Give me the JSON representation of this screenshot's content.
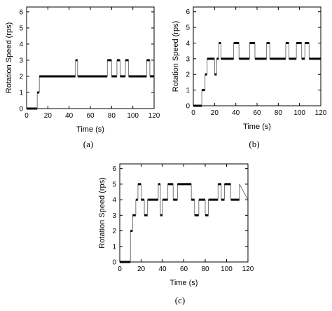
{
  "chart_data": [
    {
      "type": "line",
      "caption": "(a)",
      "xlabel": "Time (s)",
      "ylabel": "Rotation Speed (rps)",
      "xlim": [
        0,
        120
      ],
      "ylim": [
        0,
        6.3
      ],
      "xticks": [
        0,
        20,
        40,
        60,
        80,
        100,
        120
      ],
      "yticks": [
        0,
        1,
        2,
        3,
        4,
        5,
        6
      ],
      "grid": false,
      "series": [
        {
          "x": [
            0,
            10,
            10,
            12,
            12,
            46,
            46,
            48,
            48,
            76,
            76,
            80,
            80,
            85,
            85,
            88,
            88,
            93,
            93,
            96,
            96,
            113,
            113,
            116,
            116,
            120
          ],
          "y": [
            0,
            0,
            1,
            1,
            2,
            2,
            3,
            3,
            2,
            2,
            3,
            3,
            2,
            2,
            3,
            3,
            2,
            2,
            3,
            3,
            2,
            2,
            3,
            3,
            2,
            2
          ]
        }
      ]
    },
    {
      "type": "line",
      "caption": "(b)",
      "xlabel": "Time (s)",
      "ylabel": "Rotation Speed (rps)",
      "xlim": [
        0,
        120
      ],
      "ylim": [
        0,
        6.3
      ],
      "xticks": [
        0,
        20,
        40,
        60,
        80,
        100,
        120
      ],
      "yticks": [
        0,
        1,
        2,
        3,
        4,
        5,
        6
      ],
      "grid": false,
      "series": [
        {
          "x": [
            0,
            8,
            8,
            11,
            11,
            13,
            13,
            20,
            20,
            22,
            22,
            24,
            24,
            26,
            26,
            38,
            38,
            43,
            43,
            53,
            53,
            58,
            58,
            69,
            69,
            72,
            72,
            87,
            87,
            90,
            90,
            97,
            97,
            102,
            102,
            105,
            105,
            109,
            109,
            120
          ],
          "y": [
            0,
            0,
            1,
            1,
            2,
            2,
            3,
            3,
            2,
            2,
            3,
            3,
            4,
            4,
            3,
            3,
            4,
            4,
            3,
            3,
            4,
            4,
            3,
            3,
            4,
            4,
            3,
            3,
            4,
            4,
            3,
            3,
            4,
            4,
            3,
            3,
            4,
            4,
            3,
            3
          ]
        }
      ]
    },
    {
      "type": "line",
      "caption": "(c)",
      "xlabel": "Time (s)",
      "ylabel": "Rotation Speed (rps)",
      "xlim": [
        0,
        120
      ],
      "ylim": [
        0,
        6.3
      ],
      "xticks": [
        0,
        20,
        40,
        60,
        80,
        100,
        120
      ],
      "yticks": [
        0,
        1,
        2,
        3,
        4,
        5,
        6
      ],
      "grid": false,
      "series": [
        {
          "x": [
            0,
            10,
            10,
            12,
            12,
            15,
            15,
            17,
            17,
            20,
            20,
            23,
            23,
            26,
            26,
            36,
            36,
            38,
            38,
            40,
            40,
            45,
            45,
            50,
            50,
            54,
            54,
            67,
            67,
            70,
            70,
            74,
            74,
            80,
            80,
            83,
            83,
            92,
            92,
            95,
            95,
            98,
            98,
            104,
            104,
            112,
            112,
            120
          ],
          "y": [
            0,
            0,
            2,
            2,
            3,
            3,
            4,
            4,
            5,
            5,
            4,
            4,
            3,
            3,
            4,
            4,
            5,
            5,
            3,
            3,
            4,
            4,
            5,
            5,
            4,
            4,
            5,
            5,
            4,
            4,
            3,
            3,
            4,
            4,
            3,
            3,
            4,
            4,
            5,
            5,
            4,
            4,
            5,
            5,
            4,
            4,
            5,
            4
          ]
        }
      ]
    }
  ]
}
